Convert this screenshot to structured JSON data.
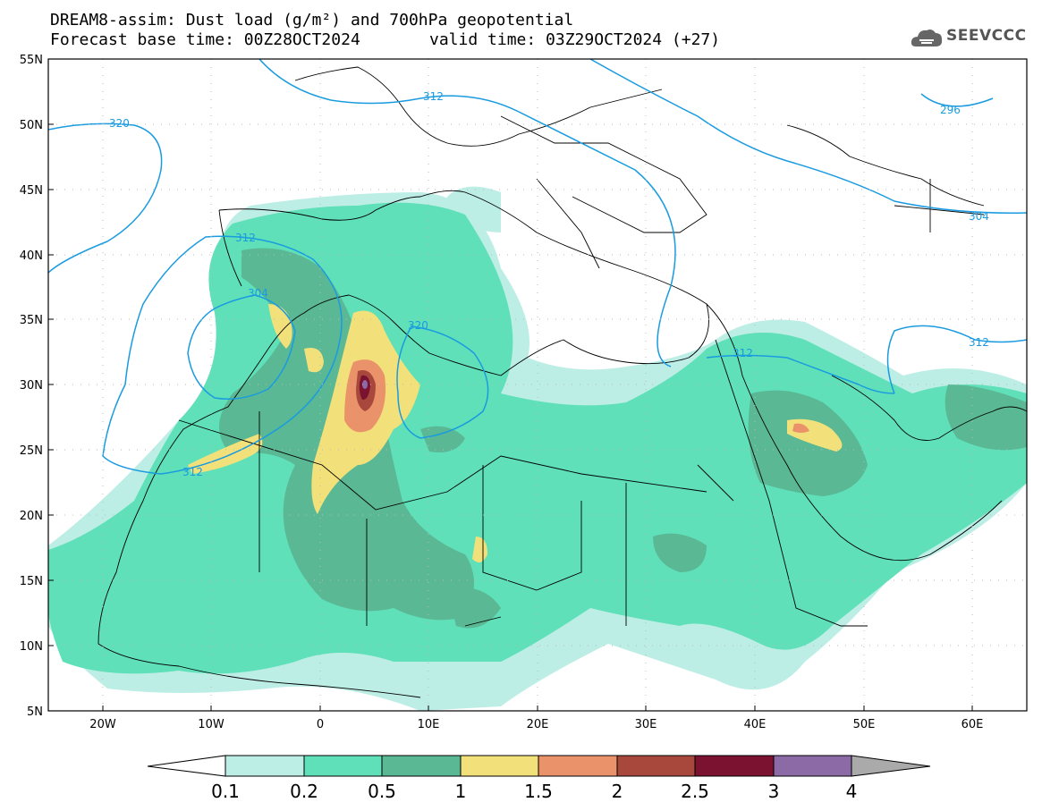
{
  "title": {
    "line1": "DREAM8-assim: Dust load (g/m²) and 700hPa geopotential",
    "line2a": "Forecast base time: 00Z28OCT2024",
    "line2b": "valid time: 03Z29OCT2024 (+27)"
  },
  "logo": {
    "text": "SEEVCCC",
    "icon": "cloud-logo-icon"
  },
  "axes": {
    "lat_labels": [
      "55N",
      "50N",
      "45N",
      "40N",
      "35N",
      "30N",
      "25N",
      "20N",
      "15N",
      "10N",
      "5N"
    ],
    "lon_labels": [
      "20W",
      "10W",
      "0",
      "10E",
      "20E",
      "30E",
      "40E",
      "50E",
      "60E"
    ]
  },
  "contours": {
    "labels": [
      "320",
      "312",
      "312",
      "304",
      "320",
      "312",
      "312",
      "296",
      "304",
      "312",
      "312",
      "304",
      "312"
    ]
  },
  "colorbar": {
    "ticks": [
      "0.1",
      "0.2",
      "0.5",
      "1",
      "1.5",
      "2",
      "2.5",
      "3",
      "4"
    ],
    "colors": [
      "#ffffff",
      "#bdeee6",
      "#5fe0b8",
      "#5ab895",
      "#f2e17a",
      "#ea926a",
      "#a8483c",
      "#7a1230",
      "#8c6aa6",
      "#aaaaaa"
    ]
  },
  "colors": {
    "geopotential": "#1a9be0",
    "coast": "#000000"
  }
}
